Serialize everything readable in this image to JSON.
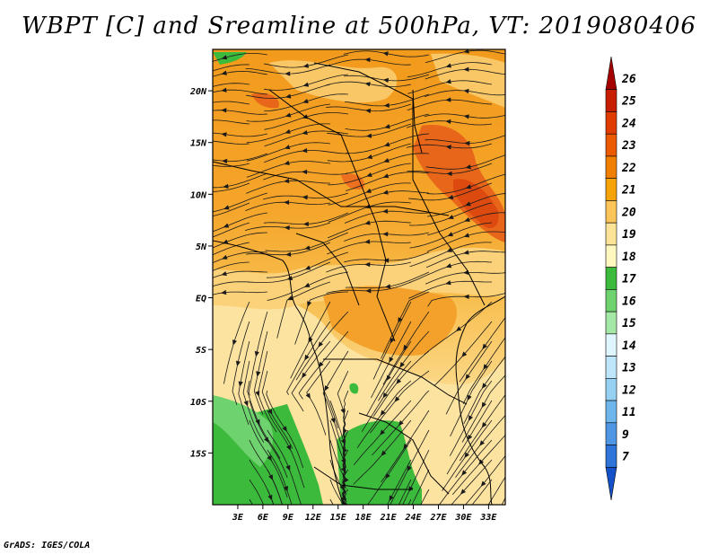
{
  "title": "WBPT [C] and Sreamline at 500hPa, VT: 2019080406",
  "credit": "GrADS: IGES/COLA",
  "map": {
    "lon_range": [
      0,
      35
    ],
    "lat_range": [
      -20,
      24
    ],
    "x_ticks": [
      "3E",
      "6E",
      "9E",
      "12E",
      "15E",
      "18E",
      "21E",
      "24E",
      "27E",
      "30E",
      "33E"
    ],
    "y_ticks": [
      "20N",
      "15N",
      "10N",
      "5N",
      "EQ",
      "5S",
      "10S",
      "15S"
    ]
  },
  "colorbar": {
    "labels": [
      "26",
      "25",
      "24",
      "23",
      "22",
      "21",
      "20",
      "19",
      "18",
      "17",
      "16",
      "15",
      "14",
      "13",
      "12",
      "11",
      "9",
      "7"
    ],
    "colors": [
      "#a50000",
      "#c81e00",
      "#e13c00",
      "#ec5a00",
      "#f07f00",
      "#f6a30a",
      "#fbc55a",
      "#fde396",
      "#fff7c0",
      "#3cba3c",
      "#6ed26e",
      "#a5e8a5",
      "#e0f6ff",
      "#bfe5fa",
      "#96d1f4",
      "#6eb6ec",
      "#4f97e4",
      "#2f74d8",
      "#1450c8"
    ]
  }
}
